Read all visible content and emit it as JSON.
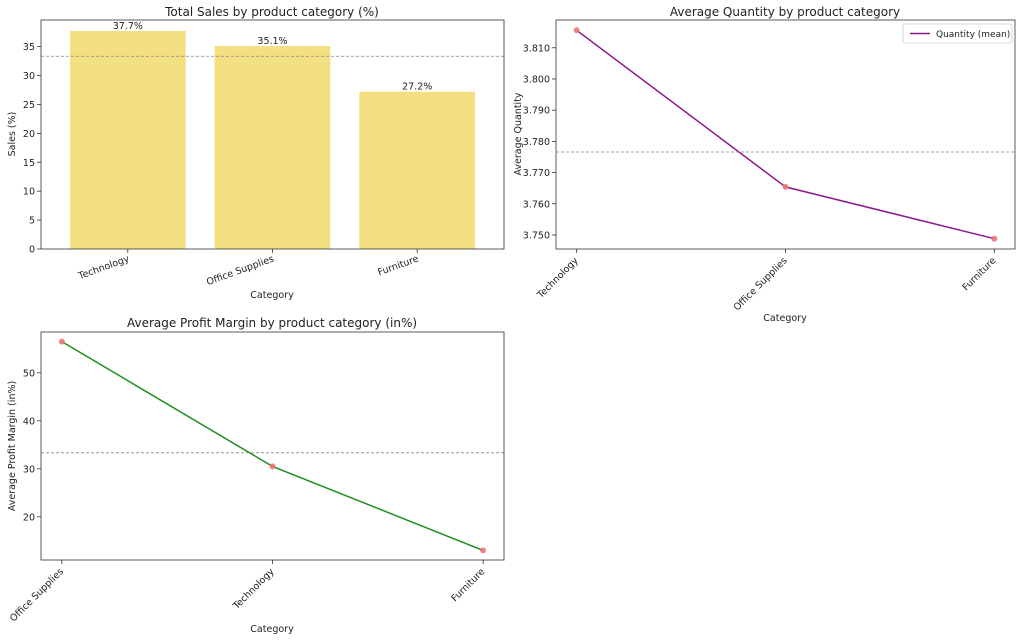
{
  "chart_data": [
    {
      "type": "bar",
      "title": "Total Sales by product category (%)",
      "xlabel": "Category",
      "ylabel": "Sales (%)",
      "categories": [
        "Technology",
        "Office Supplies",
        "Furniture"
      ],
      "values": [
        37.7,
        35.1,
        27.2
      ],
      "data_labels": [
        "37.7%",
        "35.1%",
        "27.2%"
      ],
      "ylim": [
        0,
        39.6
      ],
      "yticks": [
        0,
        5,
        10,
        15,
        20,
        25,
        30,
        35
      ],
      "reference_line": 33.33,
      "bar_color": "#f3e082",
      "grid": false
    },
    {
      "type": "line",
      "title": "Average Quantity by product category",
      "xlabel": "Category",
      "ylabel": "Average Quantity",
      "categories": [
        "Technology",
        "Office Supplies",
        "Furniture"
      ],
      "series": [
        {
          "name": "Quantity (mean)",
          "values": [
            3.8156,
            3.7654,
            3.7488
          ]
        }
      ],
      "ylim": [
        3.7455,
        3.8189
      ],
      "yticks": [
        3.75,
        3.76,
        3.77,
        3.78,
        3.79,
        3.8,
        3.81
      ],
      "ytick_labels": [
        "3.750",
        "3.760",
        "3.770",
        "3.780",
        "3.790",
        "3.800",
        "3.810"
      ],
      "reference_line": 3.7766,
      "line_color": "#8b1a8b",
      "marker_color": "#f07070",
      "legend": "top-right",
      "grid": false
    },
    {
      "type": "line",
      "title": "Average Profit Margin by product category (in%)",
      "xlabel": "Category",
      "ylabel": "Average Profit Margin (in%)",
      "categories": [
        "Office Supplies",
        "Technology",
        "Furniture"
      ],
      "series": [
        {
          "values": [
            56.5,
            30.5,
            13.0
          ]
        }
      ],
      "ylim": [
        11.0,
        58.5
      ],
      "yticks": [
        20,
        30,
        40,
        50
      ],
      "reference_line": 33.33,
      "line_color": "#1f8f1f",
      "marker_color": "#f07070",
      "grid": false
    }
  ]
}
